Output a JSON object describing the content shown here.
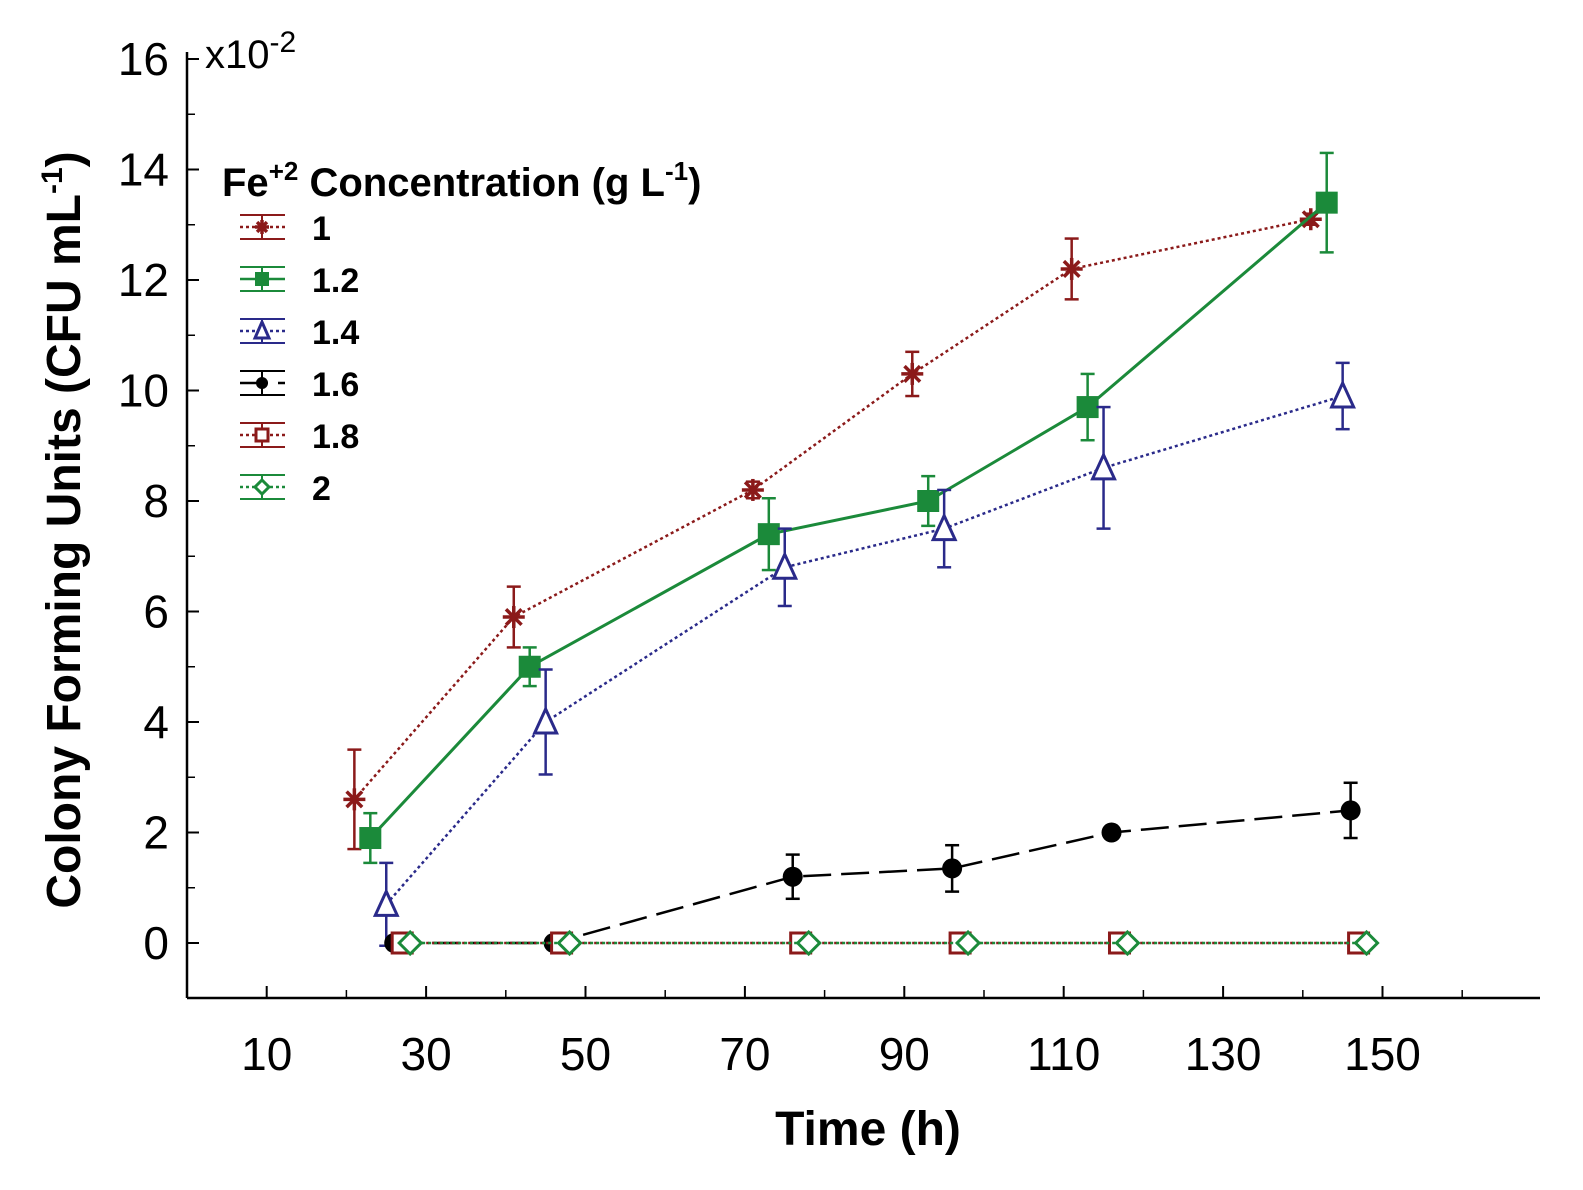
{
  "chart_data": {
    "type": "line",
    "xlabel": "Time (h)",
    "ylabel": "Colony Forming Units (CFU mL",
    "ylabel_sup": "-1",
    "ylabel_close": ")",
    "y_multiplier": "x10",
    "y_multiplier_exp": "-2",
    "xlim": [
      0,
      170
    ],
    "ylim": [
      -1,
      16
    ],
    "x_ticks": [
      10,
      30,
      50,
      70,
      90,
      110,
      130,
      150
    ],
    "x_minor_ticks": [
      0,
      20,
      40,
      60,
      80,
      100,
      120,
      140,
      160
    ],
    "y_ticks": [
      0,
      2,
      4,
      6,
      8,
      10,
      12,
      14,
      16
    ],
    "grid": false,
    "legend": {
      "title_prefix": "Fe",
      "title_sup": "+2",
      "title_mid": " Concentration (g L",
      "title_sup2": "-1",
      "title_end": ")",
      "placement": "top-left"
    },
    "series": [
      {
        "name": "1",
        "color": "#8b1a1a",
        "marker": "asterisk",
        "line": "dotted",
        "x": [
          21,
          41,
          71,
          91,
          111,
          141
        ],
        "y": [
          2.6,
          5.9,
          8.2,
          10.3,
          12.2,
          13.1
        ],
        "err": [
          0.9,
          0.55,
          0.15,
          0.4,
          0.55,
          0.1
        ]
      },
      {
        "name": "1.2",
        "color": "#1b8a3a",
        "marker": "square",
        "line": "solid",
        "x": [
          23,
          43,
          73,
          93,
          113,
          143
        ],
        "y": [
          1.9,
          5.0,
          7.4,
          8.0,
          9.7,
          13.4
        ],
        "err": [
          0.45,
          0.35,
          0.65,
          0.45,
          0.6,
          0.9
        ]
      },
      {
        "name": "1.4",
        "color": "#2a2a8a",
        "marker": "triangle",
        "line": "dotted",
        "x": [
          25,
          45,
          75,
          95,
          115,
          145
        ],
        "y": [
          0.7,
          4.0,
          6.8,
          7.5,
          8.6,
          9.9
        ],
        "err": [
          0.75,
          0.95,
          0.7,
          0.7,
          1.1,
          0.6
        ]
      },
      {
        "name": "1.6",
        "color": "#000000",
        "marker": "circle",
        "line": "dashed",
        "x": [
          26,
          46,
          76,
          96,
          116,
          146
        ],
        "y": [
          0,
          0,
          1.2,
          1.35,
          2.0,
          2.4
        ],
        "err": [
          0,
          0,
          0.4,
          0.42,
          0,
          0.5
        ]
      },
      {
        "name": "1.8",
        "color": "#8b1a1a",
        "marker": "open-square",
        "line": "dotted",
        "x": [
          27,
          47,
          77,
          97,
          117,
          147
        ],
        "y": [
          0,
          0,
          0,
          0,
          0,
          0
        ],
        "err": [
          0,
          0,
          0,
          0,
          0,
          0
        ]
      },
      {
        "name": "2",
        "color": "#1b8a3a",
        "marker": "open-diamond",
        "line": "dotted",
        "x": [
          28,
          48,
          78,
          98,
          118,
          148
        ],
        "y": [
          0,
          0,
          0,
          0,
          0,
          0
        ],
        "err": [
          0,
          0,
          0,
          0,
          0,
          0
        ]
      }
    ]
  }
}
